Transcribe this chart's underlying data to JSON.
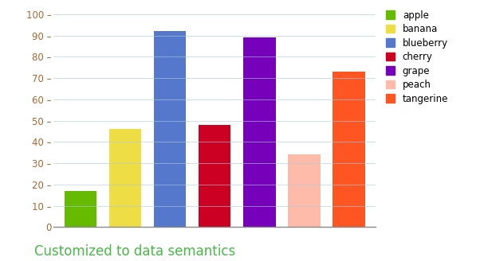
{
  "categories": [
    "apple",
    "banana",
    "blueberry",
    "cherry",
    "grape",
    "peach",
    "tangerine"
  ],
  "values": [
    17,
    46,
    92,
    48,
    89,
    34,
    73
  ],
  "bar_colors": [
    "#66bb00",
    "#eedd44",
    "#5577cc",
    "#cc0022",
    "#7700bb",
    "#ffbbaa",
    "#ff5522"
  ],
  "legend_colors": [
    "#66bb00",
    "#eedd44",
    "#5577cc",
    "#cc0022",
    "#7700bb",
    "#ffbbaa",
    "#ff5522"
  ],
  "title": "Customized to data semantics",
  "title_color": "#44bb44",
  "title_fontsize": 12,
  "ylim": [
    0,
    103
  ],
  "yticks": [
    0,
    10,
    20,
    30,
    40,
    50,
    60,
    70,
    80,
    90,
    100
  ],
  "tick_label_color": "#aa6633",
  "grid_color": "#aaccdd",
  "grid_alpha": 0.6,
  "background_color": "#ffffff",
  "bar_width": 0.72
}
